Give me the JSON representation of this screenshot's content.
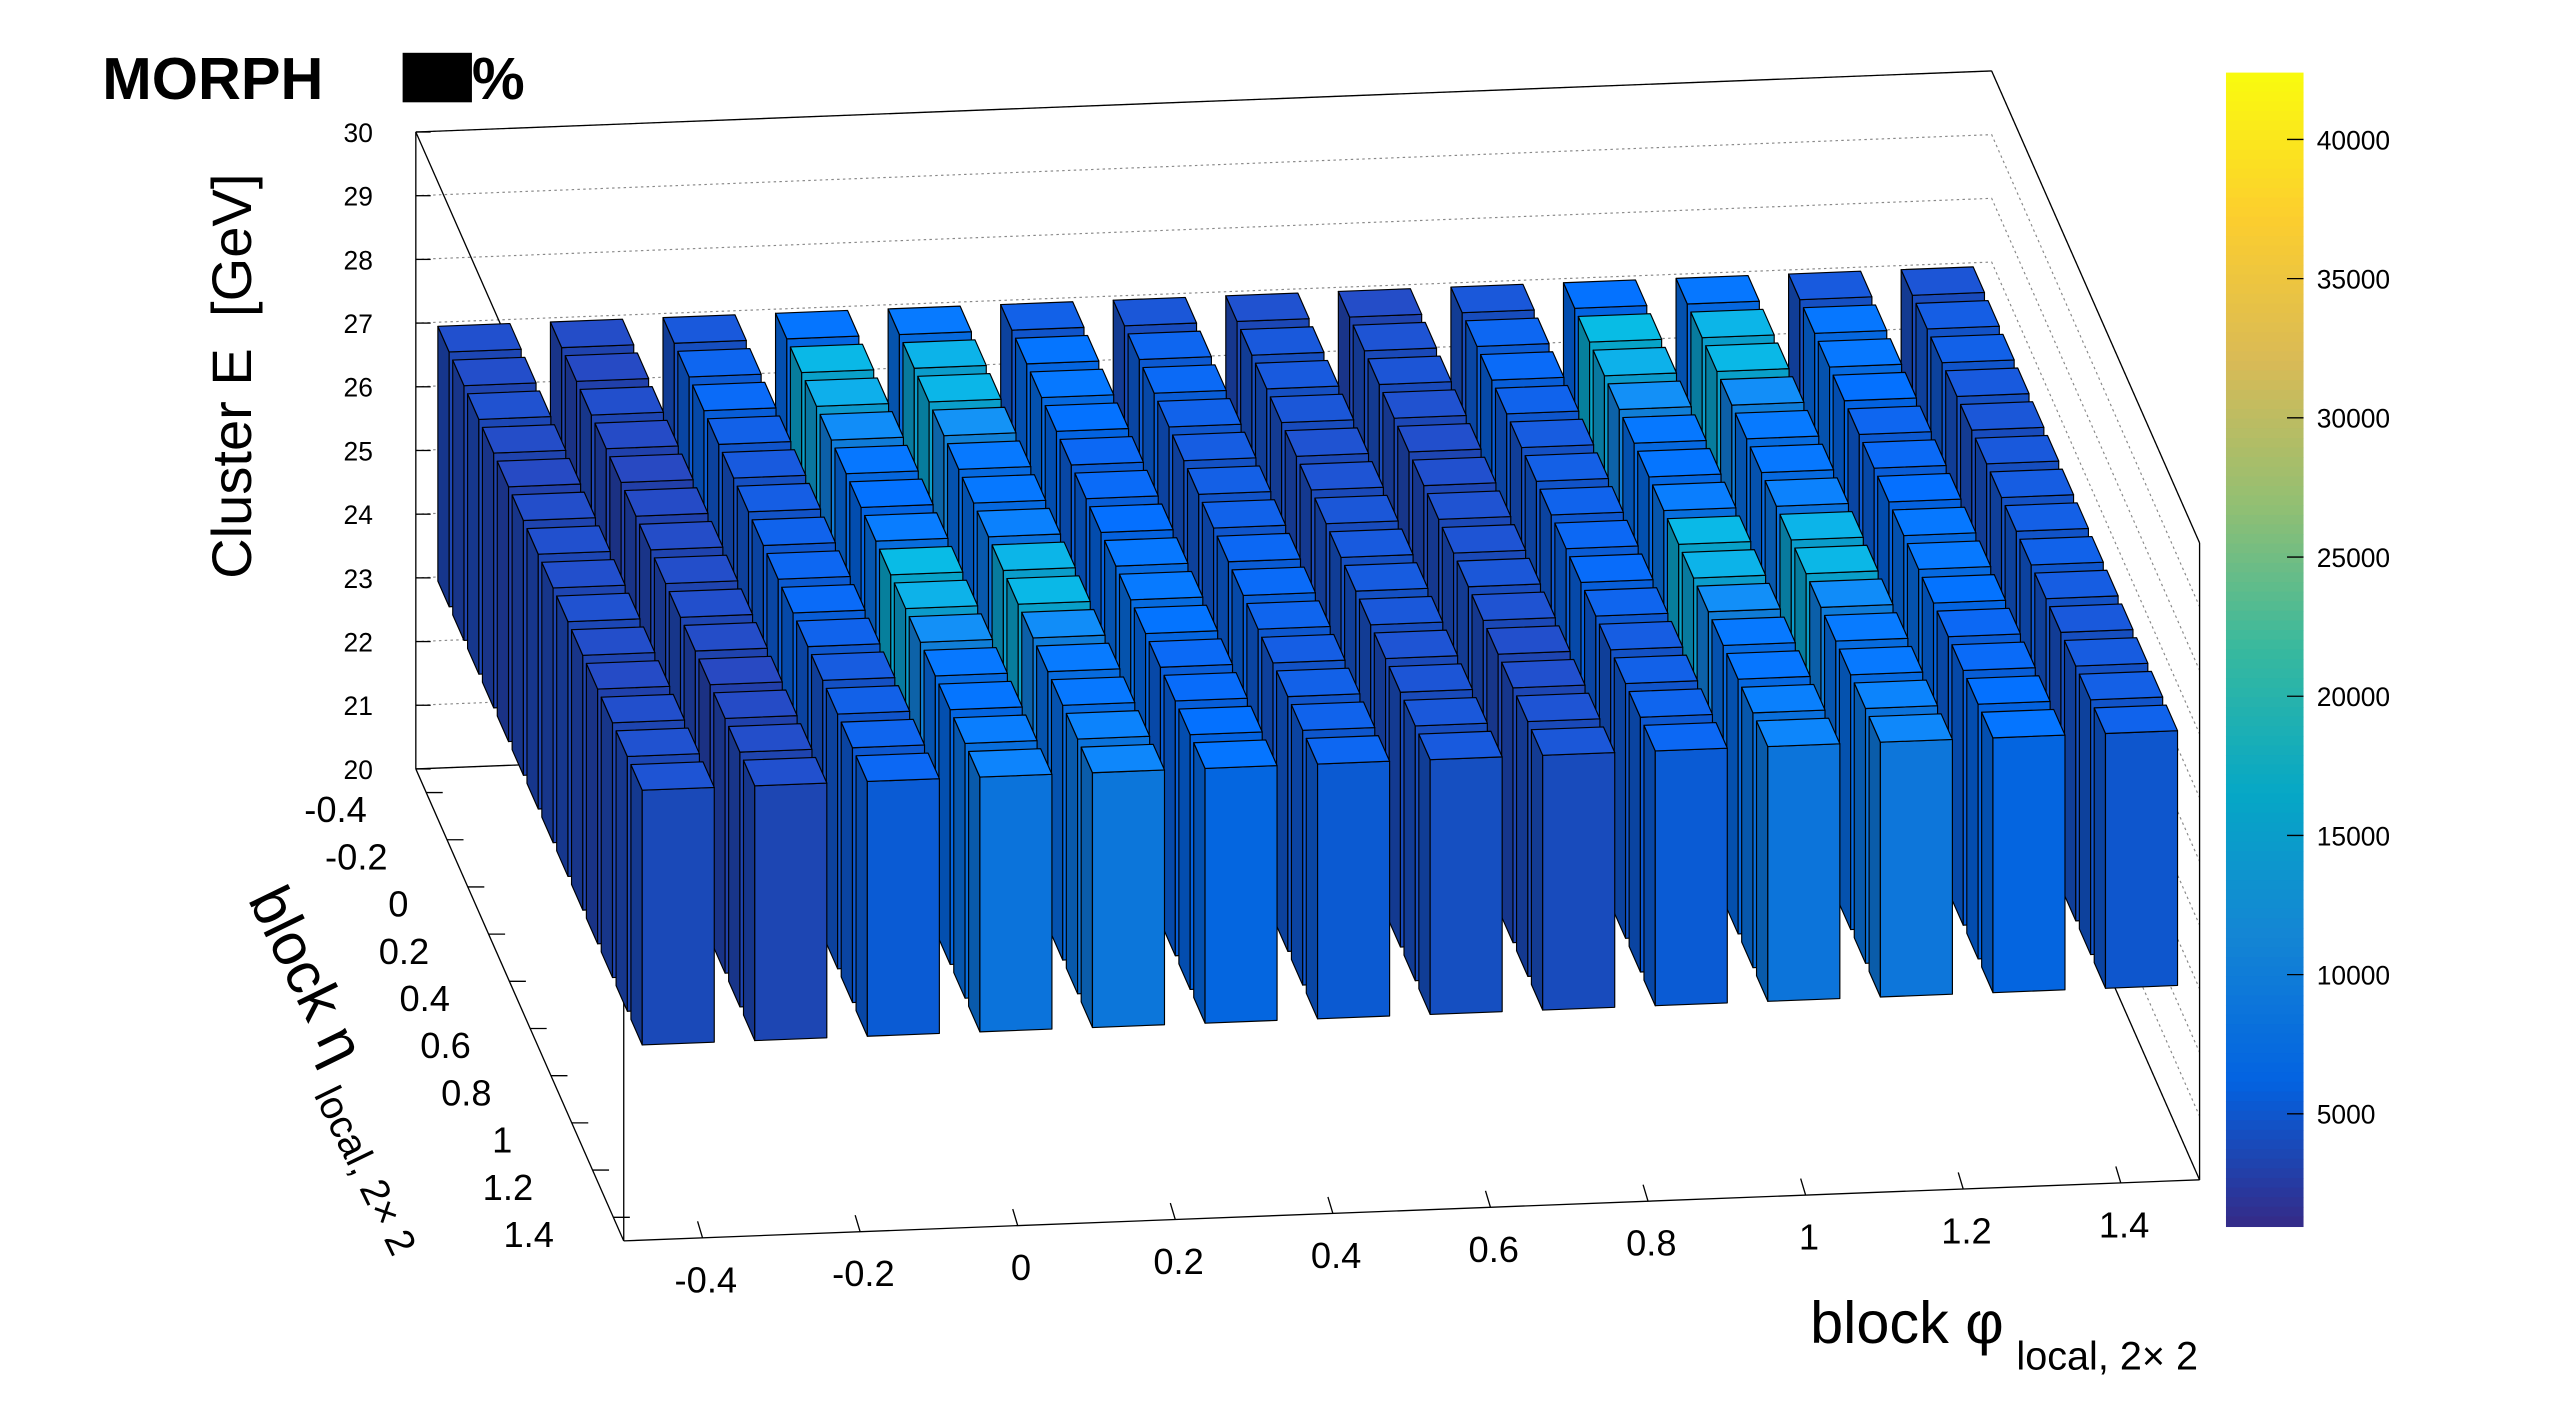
{
  "chart_data": {
    "type": "lego",
    "title": "MORPH",
    "title_suffix": "%",
    "zlabel": "Cluster E  [GeV]",
    "xlabel": {
      "main": "block φ",
      "sub": "local, 2× 2"
    },
    "ylabel": {
      "main": "block η",
      "sub": "local, 2× 2"
    },
    "xlim": [
      -0.5,
      1.5
    ],
    "xticks": [
      -0.4,
      -0.2,
      0,
      0.2,
      0.4,
      0.6,
      0.8,
      1,
      1.2,
      1.4
    ],
    "ylim": [
      -0.5,
      1.5
    ],
    "yticks": [
      -0.4,
      -0.2,
      0,
      0.2,
      0.4,
      0.6,
      0.8,
      1,
      1.2,
      1.4
    ],
    "zlim": [
      20,
      30
    ],
    "zticks": [
      20,
      21,
      22,
      23,
      24,
      25,
      26,
      27,
      28,
      29,
      30
    ],
    "bar_bottom": 23,
    "bar_top": 27,
    "clim": [
      970,
      42400
    ],
    "cticks": [
      5000,
      10000,
      15000,
      20000,
      25000,
      30000,
      35000,
      40000
    ],
    "colorscale": [
      "#352a87",
      "#0363e1",
      "#1485d4",
      "#06a7c6",
      "#38b99e",
      "#92bf73",
      "#d9ba56",
      "#fcce2e",
      "#f9fb0e"
    ],
    "grid": true,
    "counts": [
      [
        3500,
        3200,
        4200,
        6500,
        7200,
        4800,
        4000,
        3600,
        3200,
        4100,
        6200,
        6800,
        4300,
        3900
      ],
      [
        3300,
        3000,
        5200,
        15500,
        14800,
        6500,
        5200,
        4200,
        3800,
        5300,
        16000,
        15000,
        6800,
        4600
      ],
      [
        3600,
        3400,
        5600,
        14200,
        15200,
        6900,
        5500,
        4300,
        3900,
        5600,
        14500,
        15500,
        7000,
        4800
      ],
      [
        3200,
        3100,
        4800,
        9800,
        10500,
        6200,
        4900,
        4000,
        3600,
        5000,
        10200,
        9900,
        6100,
        4300
      ],
      [
        3000,
        2900,
        4300,
        6800,
        7100,
        5400,
        4500,
        3700,
        3400,
        4400,
        6900,
        7200,
        5200,
        4000
      ],
      [
        3300,
        3100,
        4600,
        6200,
        6900,
        5600,
        4700,
        3800,
        3500,
        4700,
        6600,
        7000,
        5500,
        4200
      ],
      [
        3500,
        3200,
        5000,
        7600,
        8200,
        6000,
        4900,
        4000,
        3700,
        5000,
        7800,
        8300,
        6000,
        4500
      ],
      [
        3400,
        3300,
        5300,
        15800,
        15000,
        7000,
        5400,
        4300,
        3800,
        5400,
        15600,
        14900,
        6900,
        4700
      ],
      [
        3600,
        3400,
        5600,
        14700,
        15400,
        7200,
        5600,
        4400,
        4000,
        5700,
        14800,
        15300,
        7100,
        4900
      ],
      [
        3300,
        3200,
        5000,
        10200,
        9800,
        6400,
        5100,
        4100,
        3700,
        5100,
        10000,
        9600,
        6300,
        4500
      ],
      [
        3100,
        2900,
        4400,
        7000,
        7300,
        5500,
        4600,
        3800,
        3400,
        4500,
        7100,
        7400,
        5400,
        4200
      ],
      [
        3400,
        3100,
        4800,
        6500,
        7000,
        5700,
        4800,
        3900,
        3500,
        4800,
        6700,
        7100,
        5600,
        4400
      ],
      [
        3600,
        3300,
        5100,
        7800,
        8400,
        6100,
        5000,
        4100,
        3800,
        5100,
        8000,
        8500,
        6100,
        4700
      ],
      [
        3800,
        3500,
        5400,
        8600,
        9000,
        6600,
        5300,
        4300,
        4000,
        5400,
        8800,
        9100,
        6500,
        5000
      ]
    ]
  }
}
